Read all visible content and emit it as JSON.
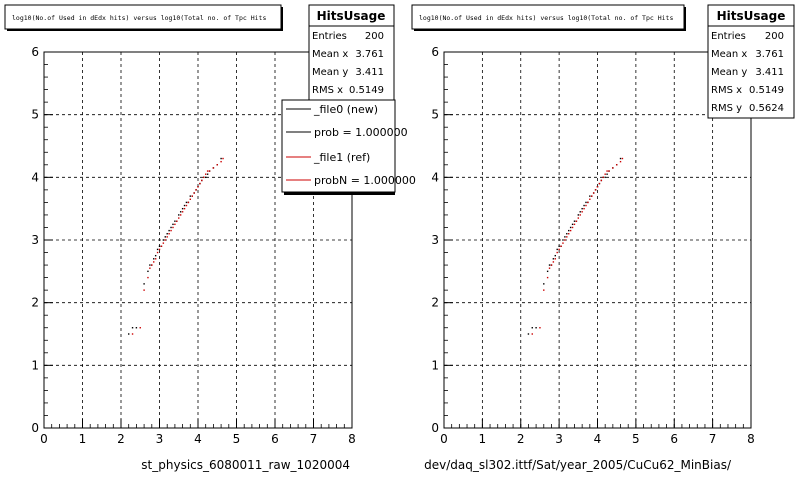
{
  "colors": {
    "background": "#ffffff",
    "new_series": "#000000",
    "ref_series": "#cc0000",
    "grid": "#000000"
  },
  "chart_data": [
    {
      "type": "scatter",
      "title": "log10(No.of Used in dEdx hits) versus log10(Total no. of Tpc Hits",
      "xlabel": "st_physics_6080011_raw_1020004",
      "ylabel": "",
      "xlim": [
        0,
        8
      ],
      "ylim": [
        0,
        6
      ],
      "xticks": [
        "0",
        "1",
        "2",
        "3",
        "4",
        "5",
        "6",
        "7",
        "8"
      ],
      "yticks": [
        "0",
        "1",
        "2",
        "3",
        "4",
        "5",
        "6"
      ],
      "grid": true,
      "stats": {
        "title": "HitsUsage",
        "rows": [
          {
            "label": "Entries",
            "value": "200"
          },
          {
            "label": "Mean x",
            "value": "3.761"
          },
          {
            "label": "Mean y",
            "value": "3.411"
          },
          {
            "label": "RMS x",
            "value": "0.5149"
          }
        ]
      },
      "legend": {
        "placement": "top-right",
        "entries": [
          {
            "label": "_file0 (new)",
            "color": "#000000"
          },
          {
            "label": "prob = 1.000000",
            "color": "#000000"
          },
          {
            "label": "_file1 (ref)",
            "color": "#cc0000"
          },
          {
            "label": "probN = 1.000000",
            "color": "#cc0000"
          }
        ]
      },
      "series": [
        {
          "color": "#000000",
          "x": [
            2.2,
            2.3,
            2.4,
            2.6,
            2.7,
            2.75,
            2.8,
            2.85,
            2.9,
            2.95,
            3.0,
            3.05,
            3.1,
            3.15,
            3.2,
            3.25,
            3.3,
            3.35,
            3.4,
            3.45,
            3.5,
            3.55,
            3.6,
            3.65,
            3.7,
            3.75,
            3.8,
            3.85,
            3.9,
            3.95,
            4.0,
            4.05,
            4.1,
            4.15,
            4.2,
            4.25,
            4.3,
            4.4,
            4.5,
            4.6
          ],
          "y": [
            1.5,
            1.6,
            1.6,
            2.3,
            2.5,
            2.6,
            2.6,
            2.7,
            2.75,
            2.85,
            2.9,
            2.9,
            3.0,
            3.05,
            3.1,
            3.15,
            3.2,
            3.25,
            3.3,
            3.3,
            3.4,
            3.45,
            3.5,
            3.55,
            3.6,
            3.6,
            3.7,
            3.7,
            3.75,
            3.8,
            3.85,
            3.9,
            3.95,
            4.0,
            4.0,
            4.05,
            4.1,
            4.15,
            4.2,
            4.3
          ]
        },
        {
          "color": "#cc0000",
          "x": [
            2.3,
            2.5,
            2.6,
            2.7,
            2.75,
            2.8,
            2.85,
            2.9,
            2.95,
            3.0,
            3.05,
            3.1,
            3.15,
            3.2,
            3.25,
            3.3,
            3.35,
            3.4,
            3.45,
            3.5,
            3.55,
            3.6,
            3.65,
            3.7,
            3.75,
            3.8,
            3.85,
            3.9,
            3.95,
            4.0,
            4.05,
            4.1,
            4.15,
            4.2,
            4.25,
            4.3,
            4.4,
            4.5,
            4.6,
            4.65
          ],
          "y": [
            1.5,
            1.6,
            2.2,
            2.4,
            2.55,
            2.6,
            2.65,
            2.7,
            2.8,
            2.85,
            2.9,
            2.95,
            3.0,
            3.05,
            3.1,
            3.15,
            3.2,
            3.25,
            3.3,
            3.35,
            3.4,
            3.45,
            3.5,
            3.55,
            3.6,
            3.65,
            3.7,
            3.75,
            3.8,
            3.85,
            3.9,
            3.95,
            4.0,
            4.05,
            4.1,
            4.1,
            4.15,
            4.2,
            4.25,
            4.3
          ]
        }
      ]
    },
    {
      "type": "scatter",
      "title": "log10(No.of Used in dEdx hits) versus log10(Total no. of Tpc Hits",
      "xlabel": "dev/daq_sl302.ittf/Sat/year_2005/CuCu62_MinBias/",
      "ylabel": "",
      "xlim": [
        0,
        8
      ],
      "ylim": [
        0,
        6
      ],
      "xticks": [
        "0",
        "1",
        "2",
        "3",
        "4",
        "5",
        "6",
        "7",
        "8"
      ],
      "yticks": [
        "0",
        "1",
        "2",
        "3",
        "4",
        "5",
        "6"
      ],
      "grid": true,
      "stats": {
        "title": "HitsUsage",
        "rows": [
          {
            "label": "Entries",
            "value": "200"
          },
          {
            "label": "Mean x",
            "value": "3.761"
          },
          {
            "label": "Mean y",
            "value": "3.411"
          },
          {
            "label": "RMS x",
            "value": "0.5149"
          },
          {
            "label": "RMS y",
            "value": "0.5624"
          }
        ]
      },
      "legend": null,
      "series": [
        {
          "color": "#000000",
          "x": [
            2.2,
            2.3,
            2.4,
            2.6,
            2.7,
            2.75,
            2.8,
            2.85,
            2.9,
            2.95,
            3.0,
            3.05,
            3.1,
            3.15,
            3.2,
            3.25,
            3.3,
            3.35,
            3.4,
            3.45,
            3.5,
            3.55,
            3.6,
            3.65,
            3.7,
            3.75,
            3.8,
            3.85,
            3.9,
            3.95,
            4.0,
            4.05,
            4.1,
            4.15,
            4.2,
            4.25,
            4.3,
            4.4,
            4.5,
            4.6
          ],
          "y": [
            1.5,
            1.6,
            1.6,
            2.3,
            2.5,
            2.6,
            2.6,
            2.7,
            2.75,
            2.85,
            2.9,
            2.9,
            3.0,
            3.05,
            3.1,
            3.15,
            3.2,
            3.25,
            3.3,
            3.3,
            3.4,
            3.45,
            3.5,
            3.55,
            3.6,
            3.6,
            3.7,
            3.7,
            3.75,
            3.8,
            3.85,
            3.9,
            3.95,
            4.0,
            4.0,
            4.05,
            4.1,
            4.15,
            4.2,
            4.3
          ]
        },
        {
          "color": "#cc0000",
          "x": [
            2.3,
            2.5,
            2.6,
            2.7,
            2.75,
            2.8,
            2.85,
            2.9,
            2.95,
            3.0,
            3.05,
            3.1,
            3.15,
            3.2,
            3.25,
            3.3,
            3.35,
            3.4,
            3.45,
            3.5,
            3.55,
            3.6,
            3.65,
            3.7,
            3.75,
            3.8,
            3.85,
            3.9,
            3.95,
            4.0,
            4.05,
            4.1,
            4.15,
            4.2,
            4.25,
            4.3,
            4.4,
            4.5,
            4.6,
            4.65
          ],
          "y": [
            1.5,
            1.6,
            2.2,
            2.4,
            2.55,
            2.6,
            2.65,
            2.7,
            2.8,
            2.85,
            2.9,
            2.95,
            3.0,
            3.05,
            3.1,
            3.15,
            3.2,
            3.25,
            3.3,
            3.35,
            3.4,
            3.45,
            3.5,
            3.55,
            3.6,
            3.65,
            3.7,
            3.75,
            3.8,
            3.85,
            3.9,
            3.95,
            4.0,
            4.05,
            4.1,
            4.1,
            4.15,
            4.2,
            4.25,
            4.3
          ]
        }
      ]
    }
  ]
}
